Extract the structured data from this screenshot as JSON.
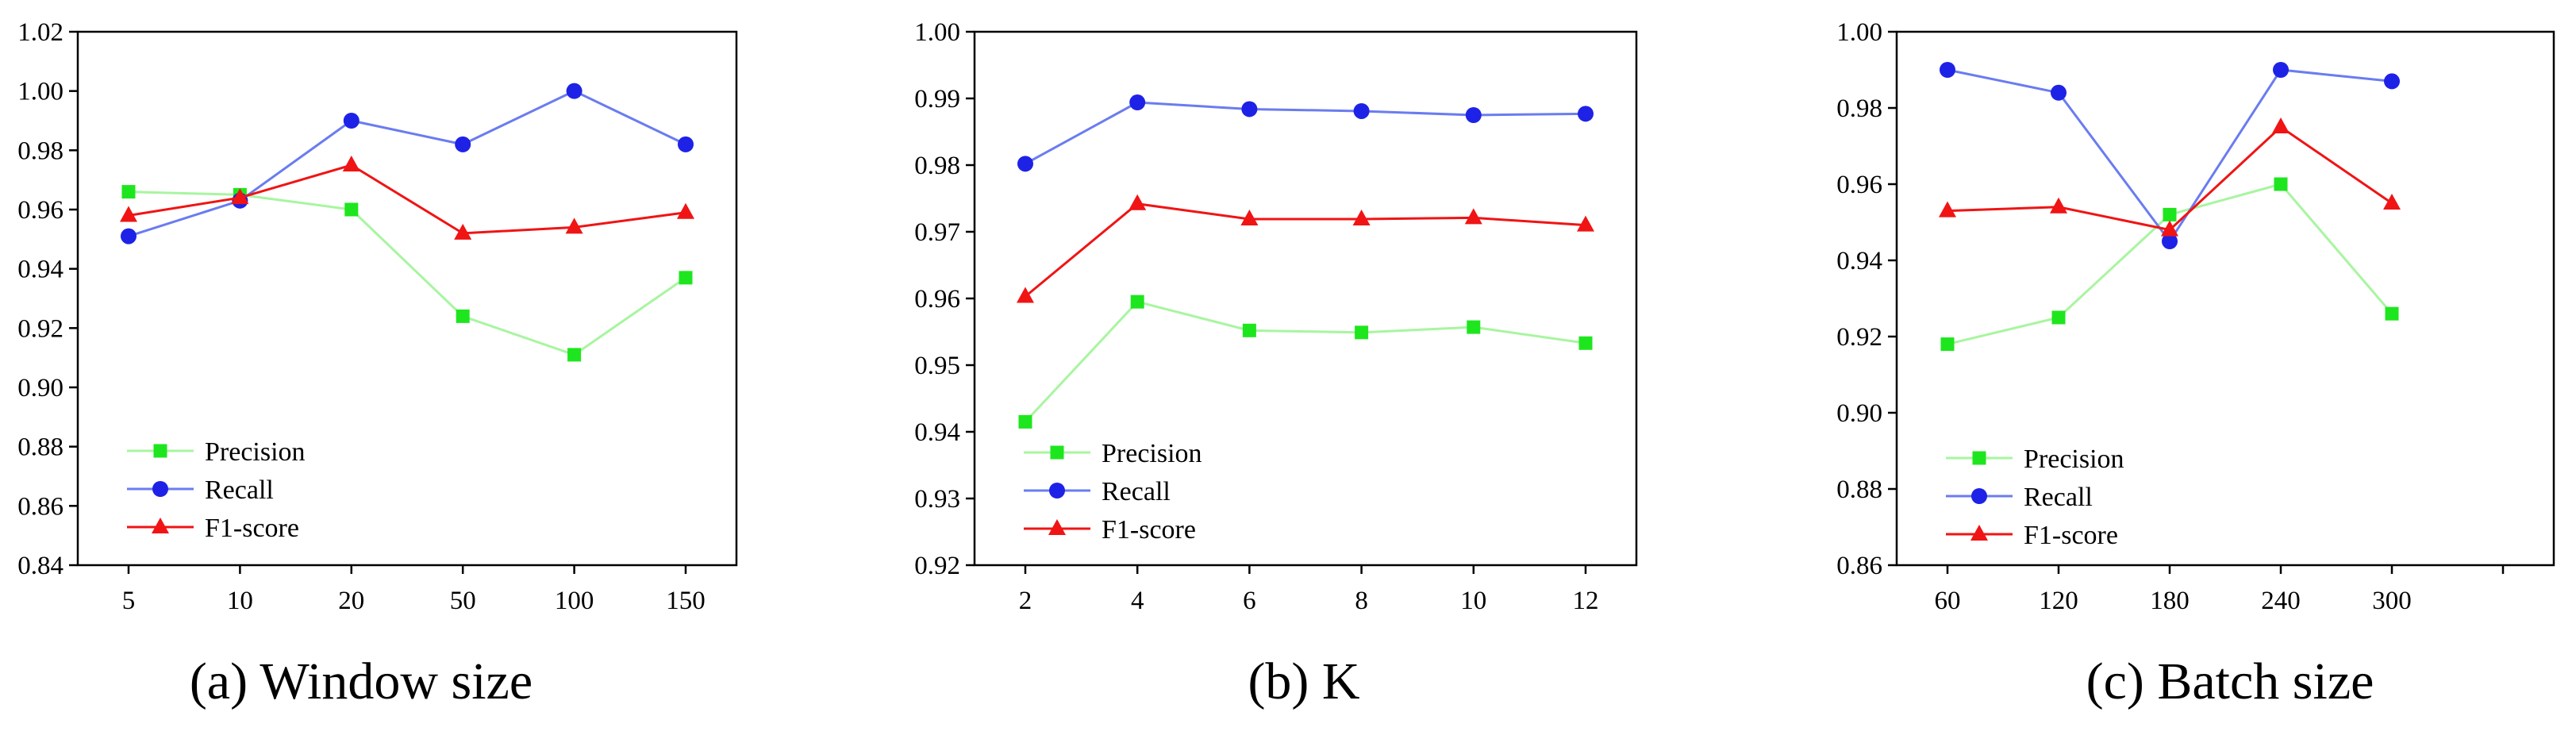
{
  "colors": {
    "precision_line": "#a8f5a0",
    "precision_marker": "#1ee61e",
    "recall_line": "#6a7cf0",
    "recall_marker": "#1e22e6",
    "f1_line": "#f01414",
    "f1_marker": "#f01414"
  },
  "chart_data": [
    {
      "type": "line",
      "caption": "(a) Window size",
      "categories": [
        "5",
        "10",
        "20",
        "50",
        "100",
        "150"
      ],
      "ylim": [
        0.84,
        1.02
      ],
      "yticks": [
        "0.84",
        "0.86",
        "0.88",
        "0.90",
        "0.92",
        "0.94",
        "0.96",
        "0.98",
        "1.00",
        "1.02"
      ],
      "legend_position": "bottom-left",
      "series": [
        {
          "name": "Precision",
          "marker": "square",
          "values": [
            0.966,
            0.965,
            0.96,
            0.924,
            0.911,
            0.937
          ]
        },
        {
          "name": "Recall",
          "marker": "circle",
          "values": [
            0.951,
            0.963,
            0.99,
            0.982,
            1.0,
            0.982
          ]
        },
        {
          "name": "F1-score",
          "marker": "triangle",
          "values": [
            0.958,
            0.964,
            0.975,
            0.952,
            0.954,
            0.959
          ]
        }
      ]
    },
    {
      "type": "line",
      "caption": "(b) K",
      "categories": [
        "2",
        "4",
        "6",
        "8",
        "10",
        "12"
      ],
      "ylim": [
        0.92,
        1.0
      ],
      "yticks": [
        "0.92",
        "0.93",
        "0.94",
        "0.95",
        "0.96",
        "0.97",
        "0.98",
        "0.99",
        "1.00"
      ],
      "legend_position": "bottom-left",
      "series": [
        {
          "name": "Precision",
          "marker": "square",
          "values": [
            0.9415,
            0.9595,
            0.9552,
            0.9549,
            0.9557,
            0.9533
          ]
        },
        {
          "name": "Recall",
          "marker": "circle",
          "values": [
            0.9802,
            0.9894,
            0.9884,
            0.9881,
            0.9875,
            0.9877
          ]
        },
        {
          "name": "F1-score",
          "marker": "triangle",
          "values": [
            0.9603,
            0.9742,
            0.9719,
            0.9719,
            0.9721,
            0.971
          ]
        }
      ]
    },
    {
      "type": "line",
      "caption": "(c) Batch size",
      "categories": [
        "60",
        "120",
        "180",
        "240",
        "300"
      ],
      "x_slots": 6,
      "ylim": [
        0.86,
        1.0
      ],
      "yticks": [
        "0.86",
        "0.88",
        "0.90",
        "0.92",
        "0.94",
        "0.96",
        "0.98",
        "1.00"
      ],
      "legend_position": "bottom-left",
      "series": [
        {
          "name": "Precision",
          "marker": "square",
          "values": [
            0.918,
            0.925,
            0.952,
            0.96,
            0.926
          ]
        },
        {
          "name": "Recall",
          "marker": "circle",
          "values": [
            0.99,
            0.984,
            0.945,
            0.99,
            0.987
          ]
        },
        {
          "name": "F1-score",
          "marker": "triangle",
          "values": [
            0.953,
            0.954,
            0.948,
            0.975,
            0.955
          ]
        }
      ]
    }
  ]
}
